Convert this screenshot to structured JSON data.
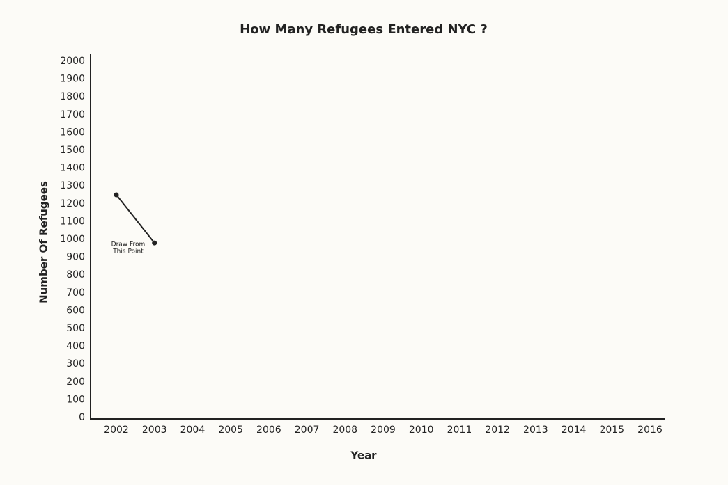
{
  "chart_data": {
    "type": "line",
    "title": "How Many Refugees Entered NYC ?",
    "x_label": "Year",
    "y_label": "Number Of Refugees",
    "categories": [
      "2002",
      "2003",
      "2004",
      "2005",
      "2006",
      "2007",
      "2008",
      "2009",
      "2010",
      "2011",
      "2012",
      "2013",
      "2014",
      "2015",
      "2016"
    ],
    "series": [
      {
        "name": "Refugees",
        "color": "#222222",
        "values": [
          1250,
          980,
          null,
          null,
          null,
          null,
          null,
          null,
          null,
          null,
          null,
          null,
          null,
          null,
          null
        ]
      }
    ],
    "annotation": [
      "Draw From",
      "This Point"
    ],
    "ylim": [
      0,
      2000
    ],
    "yticks": [
      0,
      100,
      200,
      300,
      400,
      500,
      600,
      700,
      800,
      900,
      1000,
      1100,
      1200,
      1300,
      1400,
      1500,
      1600,
      1700,
      1800,
      1900,
      2000
    ],
    "grid": false
  }
}
